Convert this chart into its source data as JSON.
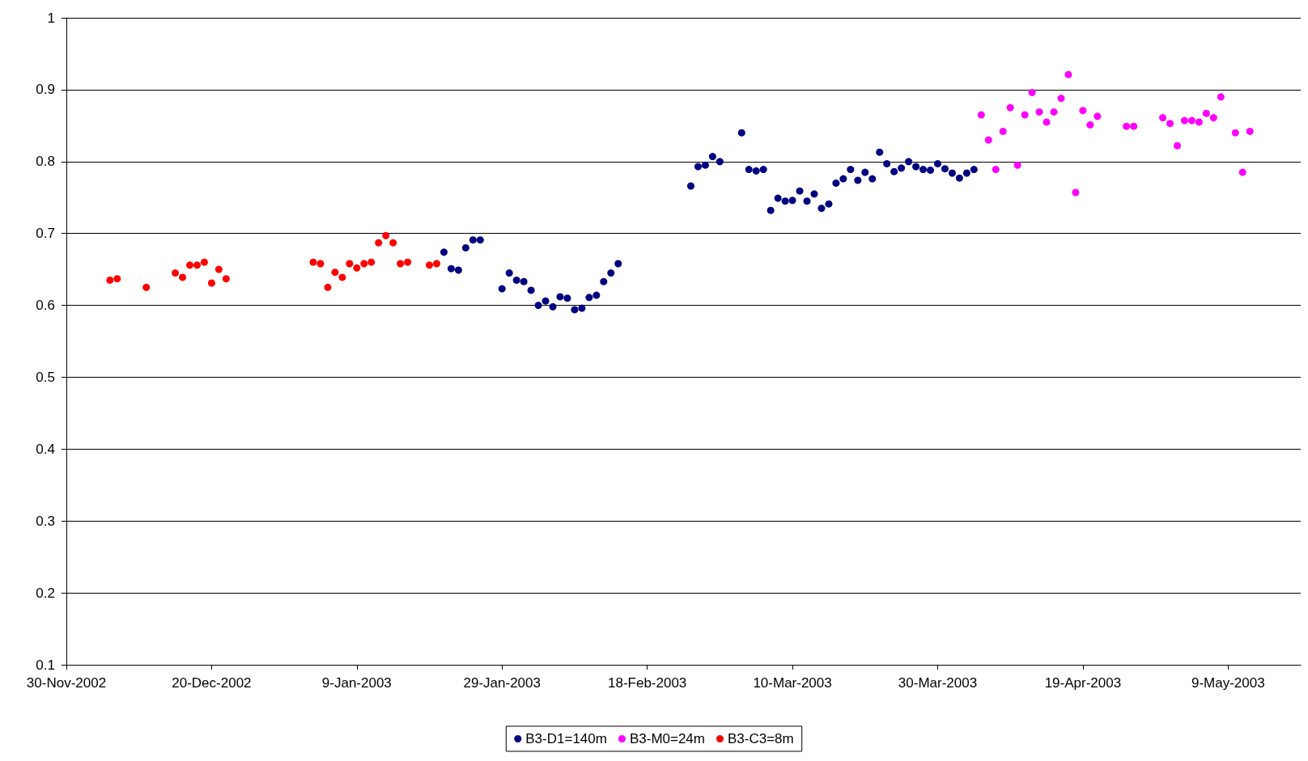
{
  "chart_data": {
    "type": "scatter",
    "marker": "circle",
    "grid": "y",
    "legend": "bottom",
    "xlim": [
      "2002-11-30",
      "2003-05-19"
    ],
    "xticks": [
      {
        "value": "2002-11-30",
        "label": "30-Nov-2002"
      },
      {
        "value": "2002-12-20",
        "label": "20-Dec-2002"
      },
      {
        "value": "2003-01-09",
        "label": "9-Jan-2003"
      },
      {
        "value": "2003-01-29",
        "label": "29-Jan-2003"
      },
      {
        "value": "2003-02-18",
        "label": "18-Feb-2003"
      },
      {
        "value": "2003-03-10",
        "label": "10-Mar-2003"
      },
      {
        "value": "2003-03-30",
        "label": "30-Mar-2003"
      },
      {
        "value": "2003-04-19",
        "label": "19-Apr-2003"
      },
      {
        "value": "2003-05-09",
        "label": "9-May-2003"
      }
    ],
    "ylim": [
      0.1,
      1
    ],
    "yticks": [
      0.1,
      0.2,
      0.3,
      0.4,
      0.5,
      0.6,
      0.7,
      0.8,
      0.9,
      1
    ],
    "series": [
      {
        "name": "B3-D1=140m",
        "color": "#000080",
        "x": [
          "2003-01-21",
          "2003-01-22",
          "2003-01-23",
          "2003-01-24",
          "2003-01-25",
          "2003-01-26",
          "2003-01-29",
          "2003-01-30",
          "2003-01-31",
          "2003-02-01",
          "2003-02-02",
          "2003-02-03",
          "2003-02-04",
          "2003-02-05",
          "2003-02-06",
          "2003-02-07",
          "2003-02-08",
          "2003-02-09",
          "2003-02-10",
          "2003-02-11",
          "2003-02-12",
          "2003-02-13",
          "2003-02-14",
          "2003-02-24",
          "2003-02-25",
          "2003-02-26",
          "2003-02-27",
          "2003-02-28",
          "2003-03-03",
          "2003-03-04",
          "2003-03-05",
          "2003-03-06",
          "2003-03-07",
          "2003-03-08",
          "2003-03-09",
          "2003-03-10",
          "2003-03-11",
          "2003-03-12",
          "2003-03-13",
          "2003-03-14",
          "2003-03-15",
          "2003-03-16",
          "2003-03-17",
          "2003-03-18",
          "2003-03-19",
          "2003-03-20",
          "2003-03-21",
          "2003-03-22",
          "2003-03-23",
          "2003-03-24",
          "2003-03-25",
          "2003-03-26",
          "2003-03-27",
          "2003-03-28",
          "2003-03-29",
          "2003-03-30",
          "2003-03-31",
          "2003-04-01",
          "2003-04-02",
          "2003-04-03",
          "2003-04-04"
        ],
        "values": [
          0.674,
          0.651,
          0.649,
          0.68,
          0.691,
          0.691,
          0.623,
          0.645,
          0.635,
          0.633,
          0.621,
          0.6,
          0.606,
          0.598,
          0.612,
          0.61,
          0.594,
          0.596,
          0.611,
          0.614,
          0.633,
          0.645,
          0.658,
          0.766,
          0.793,
          0.795,
          0.807,
          0.8,
          0.84,
          0.789,
          0.787,
          0.789,
          0.732,
          0.749,
          0.745,
          0.746,
          0.759,
          0.745,
          0.755,
          0.735,
          0.741,
          0.77,
          0.776,
          0.789,
          0.774,
          0.785,
          0.776,
          0.813,
          0.797,
          0.786,
          0.791,
          0.8,
          0.793,
          0.789,
          0.788,
          0.797,
          0.79,
          0.784,
          0.777,
          0.784,
          0.789
        ]
      },
      {
        "name": "B3-M0=24m",
        "color": "#ff00ff",
        "x": [
          "2003-04-05",
          "2003-04-06",
          "2003-04-07",
          "2003-04-08",
          "2003-04-09",
          "2003-04-10",
          "2003-04-11",
          "2003-04-12",
          "2003-04-13",
          "2003-04-14",
          "2003-04-15",
          "2003-04-16",
          "2003-04-17",
          "2003-04-18",
          "2003-04-19",
          "2003-04-20",
          "2003-04-21",
          "2003-04-25",
          "2003-04-26",
          "2003-04-30",
          "2003-05-01",
          "2003-05-02",
          "2003-05-03",
          "2003-05-04",
          "2003-05-05",
          "2003-05-06",
          "2003-05-07",
          "2003-05-08",
          "2003-05-10",
          "2003-05-11",
          "2003-05-12"
        ],
        "values": [
          0.865,
          0.83,
          0.789,
          0.842,
          0.875,
          0.795,
          0.865,
          0.896,
          0.869,
          0.855,
          0.869,
          0.888,
          0.921,
          0.757,
          0.871,
          0.851,
          0.863,
          0.849,
          0.849,
          0.861,
          0.853,
          0.822,
          0.857,
          0.857,
          0.855,
          0.867,
          0.861,
          0.89,
          0.84,
          0.785,
          0.842
        ]
      },
      {
        "name": "B3-C3=8m",
        "color": "#ff0000",
        "x": [
          "2002-12-06",
          "2002-12-07",
          "2002-12-11",
          "2002-12-15",
          "2002-12-16",
          "2002-12-17",
          "2002-12-18",
          "2002-12-19",
          "2002-12-20",
          "2002-12-21",
          "2002-12-22",
          "2003-01-03",
          "2003-01-04",
          "2003-01-05",
          "2003-01-06",
          "2003-01-07",
          "2003-01-08",
          "2003-01-09",
          "2003-01-10",
          "2003-01-11",
          "2003-01-12",
          "2003-01-13",
          "2003-01-14",
          "2003-01-15",
          "2003-01-16",
          "2003-01-19",
          "2003-01-20"
        ],
        "values": [
          0.635,
          0.637,
          0.625,
          0.645,
          0.639,
          0.656,
          0.656,
          0.66,
          0.631,
          0.65,
          0.637,
          0.66,
          0.658,
          0.625,
          0.646,
          0.639,
          0.658,
          0.652,
          0.658,
          0.66,
          0.687,
          0.697,
          0.687,
          0.658,
          0.66,
          0.656,
          0.658
        ]
      }
    ]
  }
}
